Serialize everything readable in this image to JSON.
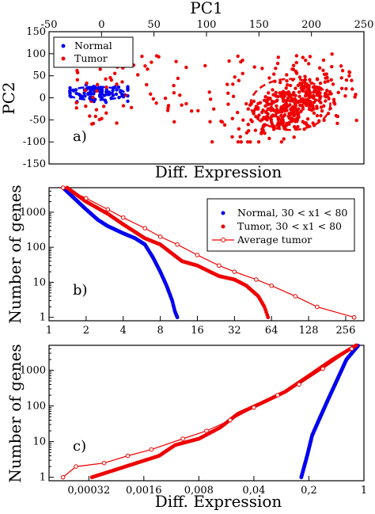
{
  "chart_data": [
    {
      "type": "scatter",
      "panel_label": "a)",
      "top_axis_label": "PC1",
      "xlabel": "Diff. Expression",
      "ylabel": "PC2",
      "top_xlim": [
        -50,
        250
      ],
      "top_xticks": [
        "-50",
        "0",
        "50",
        "100",
        "150",
        "200",
        "250"
      ],
      "ylim": [
        -150,
        150
      ],
      "yticks": [
        "150",
        "100",
        "50",
        "0",
        "-50",
        "-100",
        "-150"
      ],
      "legend_position": "top-left",
      "series": [
        {
          "name": "Normal",
          "color": "#0000ee",
          "cluster": {
            "x_range": [
              -30,
              25
            ],
            "y_range": [
              -25,
              45
            ],
            "center": [
              -5,
              10
            ],
            "count": 90
          }
        },
        {
          "name": "Tumor",
          "color": "#ee0000",
          "cluster": {
            "x_range": [
              -25,
              245
            ],
            "y_range": [
              -100,
              130
            ],
            "center": [
              175,
              -10
            ],
            "count": 520
          }
        }
      ],
      "ellipses": [
        {
          "series": "Normal",
          "center": [
            -5,
            10
          ],
          "rx": 27,
          "ry": 15
        },
        {
          "series": "Tumor",
          "center": [
            180,
            -15
          ],
          "rx": 38,
          "ry": 58
        }
      ]
    },
    {
      "type": "line",
      "panel_label": "b)",
      "xlabel": "",
      "ylabel": "Number of genes",
      "xscale": "log2",
      "yscale": "log10",
      "xlim": [
        1,
        360
      ],
      "ylim": [
        0.8,
        5000
      ],
      "xticks": [
        "1",
        "2",
        "4",
        "8",
        "16",
        "32",
        "64",
        "128",
        "256"
      ],
      "yticks": [
        "1",
        "10",
        "100",
        "1000"
      ],
      "legend_position": "top-right",
      "series": [
        {
          "name": "Normal, 30 < x1 < 80",
          "color": "#0000ee",
          "marker": "dot",
          "points": [
            [
              1.3,
              5000
            ],
            [
              1.6,
              2500
            ],
            [
              2,
              1200
            ],
            [
              2.5,
              600
            ],
            [
              3,
              400
            ],
            [
              4,
              250
            ],
            [
              5,
              180
            ],
            [
              6,
              120
            ],
            [
              7,
              50
            ],
            [
              8,
              20
            ],
            [
              9,
              8
            ],
            [
              10,
              3
            ],
            [
              10.5,
              1.5
            ],
            [
              11,
              1
            ]
          ]
        },
        {
          "name": "Tumor, 30 < x1 < 80",
          "color": "#ee0000",
          "marker": "dot",
          "points": [
            [
              1.4,
              5000
            ],
            [
              2,
              2000
            ],
            [
              3,
              900
            ],
            [
              4,
              450
            ],
            [
              6,
              180
            ],
            [
              8,
              120
            ],
            [
              12,
              40
            ],
            [
              16,
              30
            ],
            [
              24,
              15
            ],
            [
              32,
              12
            ],
            [
              40,
              8
            ],
            [
              50,
              4
            ],
            [
              56,
              2
            ],
            [
              60,
              1
            ]
          ]
        },
        {
          "name": "Average tumor",
          "color": "#ee0000",
          "marker": "open-circle",
          "line": true,
          "points": [
            [
              1.3,
              5000
            ],
            [
              2,
              2500
            ],
            [
              3,
              1200
            ],
            [
              4,
              700
            ],
            [
              6,
              350
            ],
            [
              8,
              200
            ],
            [
              11,
              120
            ],
            [
              16,
              60
            ],
            [
              24,
              30
            ],
            [
              32,
              20
            ],
            [
              48,
              12
            ],
            [
              64,
              8
            ],
            [
              100,
              4
            ],
            [
              150,
              2
            ],
            [
              300,
              1
            ]
          ]
        }
      ]
    },
    {
      "type": "line",
      "panel_label": "c)",
      "xlabel": "Diff. Expression",
      "ylabel": "Number of genes",
      "xscale": "log",
      "yscale": "log10",
      "xlim": [
        0.0001,
        1
      ],
      "ylim": [
        0.8,
        5000
      ],
      "xticks": [
        "0,00032",
        "0,0016",
        "0,008",
        "0,04",
        "0,2",
        "1"
      ],
      "yticks": [
        "1",
        "10",
        "100",
        "1000"
      ],
      "series": [
        {
          "name": "Normal",
          "color": "#0000ee",
          "marker": "dot",
          "points": [
            [
              0.16,
              1
            ],
            [
              0.19,
              4
            ],
            [
              0.22,
              15
            ],
            [
              0.28,
              50
            ],
            [
              0.35,
              150
            ],
            [
              0.45,
              500
            ],
            [
              0.6,
              2000
            ],
            [
              0.85,
              5000
            ]
          ]
        },
        {
          "name": "Tumor",
          "color": "#ee0000",
          "marker": "dot",
          "points": [
            [
              0.00035,
              1
            ],
            [
              0.0025,
              4
            ],
            [
              0.004,
              8
            ],
            [
              0.008,
              12
            ],
            [
              0.015,
              25
            ],
            [
              0.025,
              60
            ],
            [
              0.05,
              120
            ],
            [
              0.1,
              250
            ],
            [
              0.2,
              700
            ],
            [
              0.4,
              2000
            ],
            [
              0.8,
              5000
            ]
          ]
        },
        {
          "name": "Average tumor",
          "color": "#ee0000",
          "marker": "open-circle",
          "line": true,
          "points": [
            [
              0.00015,
              1
            ],
            [
              0.00022,
              2
            ],
            [
              0.0005,
              2.5
            ],
            [
              0.001,
              4
            ],
            [
              0.002,
              6
            ],
            [
              0.005,
              12
            ],
            [
              0.01,
              20
            ],
            [
              0.02,
              40
            ],
            [
              0.04,
              90
            ],
            [
              0.08,
              200
            ],
            [
              0.15,
              400
            ],
            [
              0.3,
              1100
            ],
            [
              0.7,
              4000
            ]
          ]
        }
      ]
    }
  ]
}
